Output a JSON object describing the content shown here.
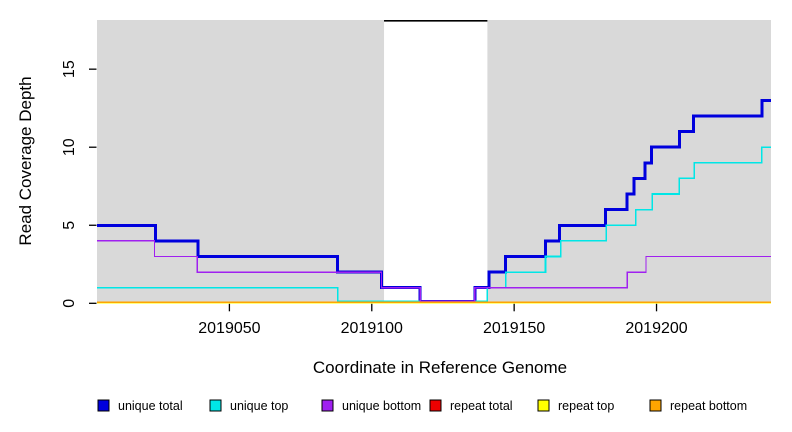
{
  "chart_data": {
    "type": "line",
    "step": true,
    "title": "",
    "xlabel": "Coordinate in Reference Genome",
    "ylabel": "Read Coverage Depth",
    "xlim": [
      2019003.5,
      2019240.2
    ],
    "ylim": [
      0,
      18.15
    ],
    "x_ticks": [
      "2019050",
      "2019100",
      "2019150",
      "2019200"
    ],
    "x_tick_values": [
      2019050,
      2019100,
      2019150,
      2019200
    ],
    "y_ticks": [
      "0",
      "5",
      "10",
      "15"
    ],
    "y_tick_values": [
      0,
      5,
      10,
      15
    ],
    "grid": false,
    "legend_position": "bottom",
    "plot_background": "#d9d9d9",
    "page_background": "#ffffff",
    "highlight_band": {
      "x_start": 2019104.3,
      "x_end": 2019140.6,
      "fill": "#ffffff",
      "top_border_color": "#000000"
    },
    "series": [
      {
        "name": "repeat total",
        "color": "#ee0000",
        "line_width": 1.4,
        "steps": [
          [
            2019003.5,
            0
          ]
        ]
      },
      {
        "name": "repeat top",
        "color": "#ffff00",
        "line_width": 1.4,
        "steps": [
          [
            2019003.5,
            0
          ]
        ]
      },
      {
        "name": "unique total",
        "color": "#0000dd",
        "line_width": 3,
        "steps": [
          [
            2019003.5,
            5
          ],
          [
            2019024,
            4
          ],
          [
            2019039,
            3
          ],
          [
            2019088,
            2
          ],
          [
            2019103.4,
            1
          ],
          [
            2019117,
            0
          ],
          [
            2019136.2,
            1
          ],
          [
            2019141.2,
            2
          ],
          [
            2019147,
            3
          ],
          [
            2019161,
            4
          ],
          [
            2019166,
            5
          ],
          [
            2019182,
            6
          ],
          [
            2019189.7,
            7
          ],
          [
            2019192,
            8
          ],
          [
            2019196,
            9
          ],
          [
            2019198.3,
            10
          ],
          [
            2019208,
            11
          ],
          [
            2019213,
            12
          ],
          [
            2019237,
            13
          ]
        ]
      },
      {
        "name": "unique top",
        "color": "#00e6e6",
        "line_width": 1.6,
        "steps": [
          [
            2019003.5,
            1
          ],
          [
            2019088,
            0
          ],
          [
            2019140.5,
            1
          ],
          [
            2019147,
            2
          ],
          [
            2019161,
            3
          ],
          [
            2019166.3,
            4
          ],
          [
            2019182.3,
            5
          ],
          [
            2019192.7,
            6
          ],
          [
            2019198.5,
            7
          ],
          [
            2019208,
            8
          ],
          [
            2019213.3,
            9
          ],
          [
            2019237,
            10
          ]
        ]
      },
      {
        "name": "unique bottom",
        "color": "#a020f0",
        "line_width": 1.4,
        "steps": [
          [
            2019003.5,
            4
          ],
          [
            2019023.7,
            3
          ],
          [
            2019038.7,
            2
          ],
          [
            2019103.4,
            1
          ],
          [
            2019117,
            0
          ],
          [
            2019136.2,
            1
          ],
          [
            2019189.7,
            2
          ],
          [
            2019196.3,
            3
          ]
        ]
      },
      {
        "name": "repeat bottom",
        "color": "#ffa500",
        "line_width": 1.6,
        "steps": [
          [
            2019003.5,
            0
          ]
        ]
      }
    ]
  },
  "legend": {
    "items": [
      {
        "label": "unique total",
        "color": "#0000dd"
      },
      {
        "label": "unique top",
        "color": "#00e6e6"
      },
      {
        "label": "unique bottom",
        "color": "#a020f0"
      },
      {
        "label": "repeat total",
        "color": "#ee0000"
      },
      {
        "label": "repeat top",
        "color": "#ffff00"
      },
      {
        "label": "repeat bottom",
        "color": "#ffa500"
      }
    ]
  }
}
